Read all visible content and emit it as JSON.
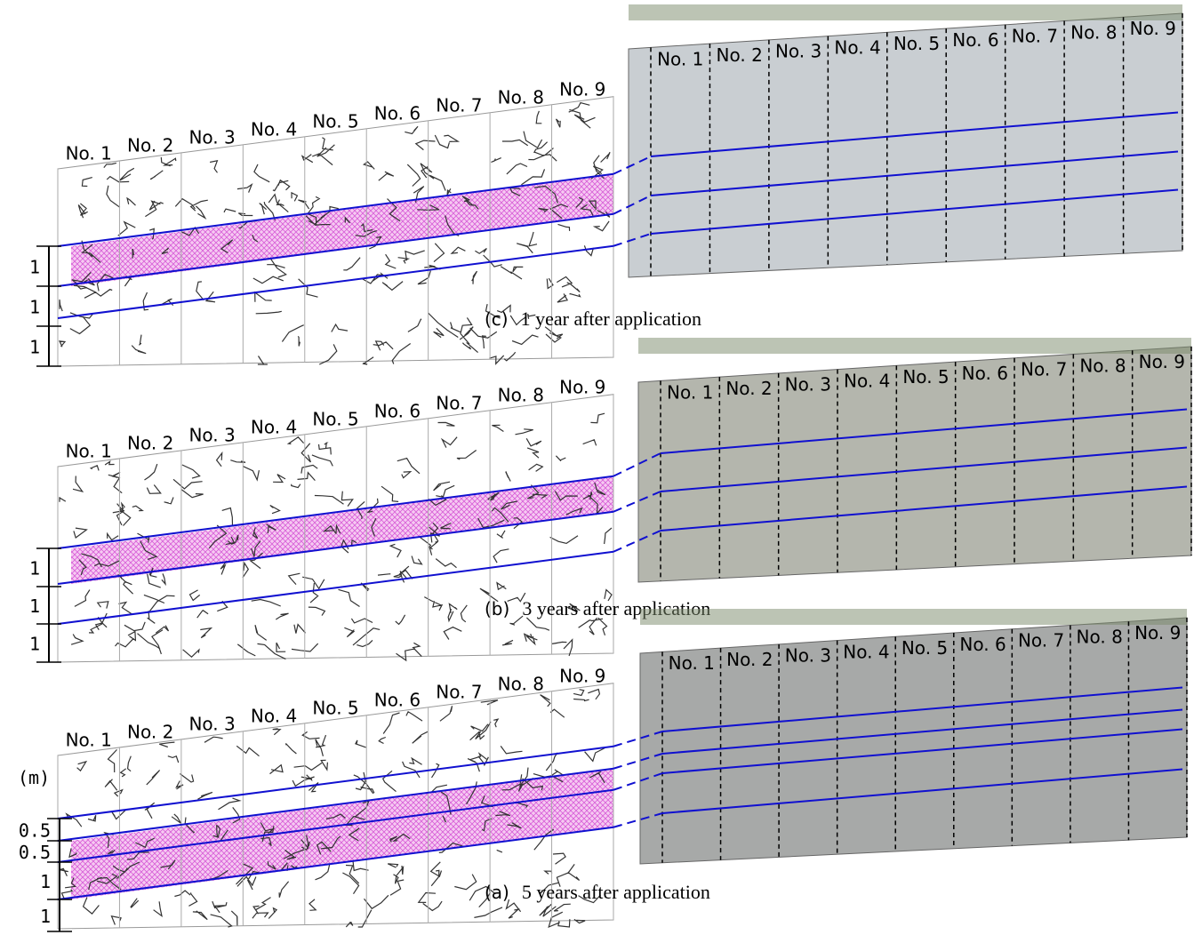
{
  "unit_label": "(m)",
  "column_labels": [
    "No. 1",
    "No. 2",
    "No. 3",
    "No. 4",
    "No. 5",
    "No. 6",
    "No. 7",
    "No. 8",
    "No. 9"
  ],
  "panels": [
    {
      "label": "(c)",
      "caption": "1 year after application",
      "scale_labels": [
        "1",
        "1",
        "1"
      ]
    },
    {
      "label": "(b)",
      "caption": "3 years after application",
      "scale_labels": [
        "1",
        "1",
        "1"
      ]
    },
    {
      "label": "(a)",
      "caption": "5 years after application",
      "scale_labels": [
        "0.5",
        "0.5",
        "1",
        "1"
      ]
    }
  ]
}
